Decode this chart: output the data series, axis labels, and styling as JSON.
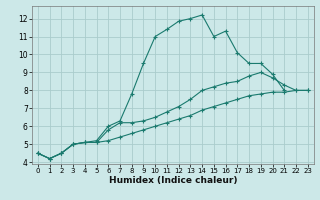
{
  "title": "",
  "xlabel": "Humidex (Indice chaleur)",
  "ylabel": "",
  "bg_color": "#cce8e8",
  "grid_color": "#aacccc",
  "line_color": "#1a7a6e",
  "xlim": [
    -0.5,
    23.5
  ],
  "ylim": [
    3.9,
    12.7
  ],
  "xticks": [
    0,
    1,
    2,
    3,
    4,
    5,
    6,
    7,
    8,
    9,
    10,
    11,
    12,
    13,
    14,
    15,
    16,
    17,
    18,
    19,
    20,
    21,
    22,
    23
  ],
  "yticks": [
    4,
    5,
    6,
    7,
    8,
    9,
    10,
    11,
    12
  ],
  "lines": [
    {
      "x": [
        0,
        1,
        2,
        3,
        4,
        5,
        6,
        7,
        8,
        9,
        10,
        11,
        12,
        13,
        14,
        15,
        16,
        17,
        18,
        19,
        20,
        21
      ],
      "y": [
        4.5,
        4.2,
        4.5,
        5.0,
        5.1,
        5.2,
        6.0,
        6.3,
        7.8,
        9.5,
        11.0,
        11.4,
        11.85,
        12.0,
        12.2,
        11.0,
        11.3,
        10.1,
        9.5,
        9.5,
        8.9,
        8.0
      ]
    },
    {
      "x": [
        0,
        1,
        2,
        3,
        4,
        5,
        6,
        7,
        8,
        9,
        10,
        11,
        12,
        13,
        14,
        15,
        16,
        17,
        18,
        19,
        20,
        21,
        22,
        23
      ],
      "y": [
        4.5,
        4.2,
        4.5,
        5.0,
        5.1,
        5.1,
        5.8,
        6.2,
        6.2,
        6.3,
        6.5,
        6.8,
        7.1,
        7.5,
        8.0,
        8.2,
        8.4,
        8.5,
        8.8,
        9.0,
        8.7,
        8.3,
        8.0,
        8.0
      ]
    },
    {
      "x": [
        0,
        1,
        2,
        3,
        4,
        5,
        6,
        7,
        8,
        9,
        10,
        11,
        12,
        13,
        14,
        15,
        16,
        17,
        18,
        19,
        20,
        21,
        22,
        23
      ],
      "y": [
        4.5,
        4.2,
        4.5,
        5.0,
        5.1,
        5.1,
        5.2,
        5.4,
        5.6,
        5.8,
        6.0,
        6.2,
        6.4,
        6.6,
        6.9,
        7.1,
        7.3,
        7.5,
        7.7,
        7.8,
        7.9,
        7.9,
        8.0,
        8.0
      ]
    }
  ]
}
